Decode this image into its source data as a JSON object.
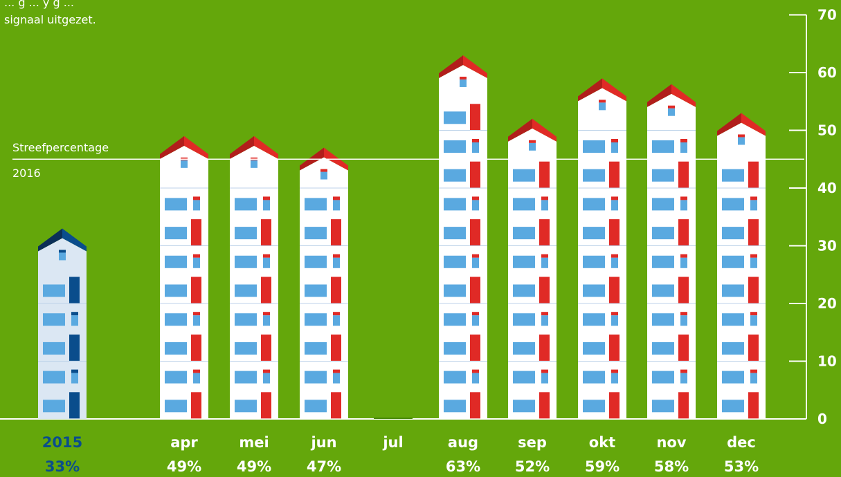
{
  "intro_text": {
    "line1": "... g ... y g ...",
    "line2": "signaal uitgezet."
  },
  "target": {
    "label_line1": "Streefpercentage",
    "label_line2": "2016",
    "value": 45
  },
  "colors": {
    "background": "#64a70b",
    "building_2015": "#dbe7f3",
    "roof_2015": "#0a4d8c",
    "building_2016": "#ffffff",
    "roof_2016": "#e02a26",
    "window": "#5aa9e0",
    "door_2016": "#e02a26",
    "door_2015": "#0a4d8c"
  },
  "chart_data": {
    "type": "bar",
    "categories": [
      "2015",
      "apr",
      "mei",
      "jun",
      "jul",
      "aug",
      "sep",
      "okt",
      "nov",
      "dec"
    ],
    "values": [
      33,
      49,
      49,
      47,
      0,
      63,
      52,
      59,
      58,
      53
    ],
    "value_labels": [
      "33%",
      "49%",
      "49%",
      "47%",
      "",
      "63%",
      "52%",
      "59%",
      "58%",
      "53%"
    ],
    "yticks": [
      "0",
      "10",
      "20",
      "30",
      "40",
      "50",
      "60",
      "70"
    ],
    "ylim": [
      0,
      70
    ],
    "title": "",
    "xlabel": "",
    "ylabel": "",
    "reference_line": 45
  }
}
